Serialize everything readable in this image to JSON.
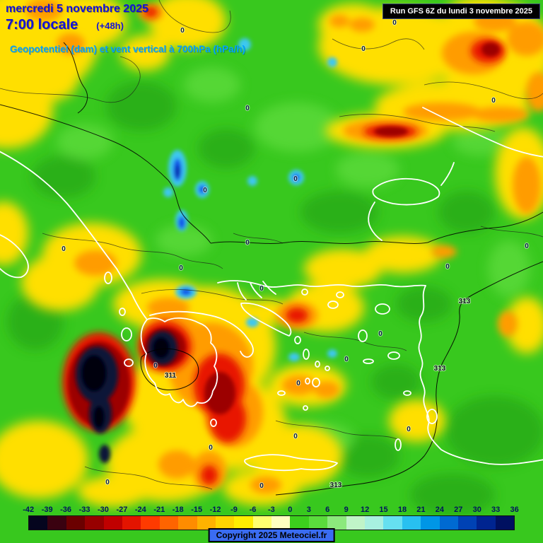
{
  "header": {
    "date": "mercredi 5 novembre 2025",
    "local_time": "7:00 locale",
    "offset": "(+48h)",
    "variable": "Geopotentiel (dam) et vent vertical à 700hPa (hPa/h)",
    "run": "Run GFS 6Z du lundi 3 novembre 2025"
  },
  "map": {
    "contour_zero": "0",
    "contour_311": "311",
    "contour_313": "313"
  },
  "legend": {
    "values": [
      "-42",
      "-39",
      "-36",
      "-33",
      "-30",
      "-27",
      "-24",
      "-21",
      "-18",
      "-15",
      "-12",
      "-9",
      "-6",
      "-3",
      "0",
      "3",
      "6",
      "9",
      "12",
      "15",
      "18",
      "21",
      "24",
      "27",
      "30",
      "33",
      "36"
    ],
    "colors": [
      "#05051e",
      "#3a0210",
      "#6b0000",
      "#970000",
      "#c00000",
      "#e31400",
      "#ff3a00",
      "#ff6400",
      "#ff8c00",
      "#ffb200",
      "#ffd400",
      "#ffee00",
      "#ffff70",
      "#ffffc0",
      "#3ccf1d",
      "#5adc3c",
      "#8ce97c",
      "#c0f4c8",
      "#a8f0e0",
      "#66e0f0",
      "#28c0f0",
      "#0096e6",
      "#006ad2",
      "#0042b4",
      "#002490",
      "#001060"
    ]
  },
  "footer": {
    "copyright": "Copyright 2025 Meteociel.fr"
  },
  "colors": {
    "header_blue": "#1212d8",
    "variable_cyan": "#00a2ff",
    "run_box_bg": "#000000",
    "run_box_text": "#ffffff",
    "legend_text": "#00135e",
    "copyright_bg": "#3a6cf2",
    "map_background_green": "#38c81e"
  }
}
